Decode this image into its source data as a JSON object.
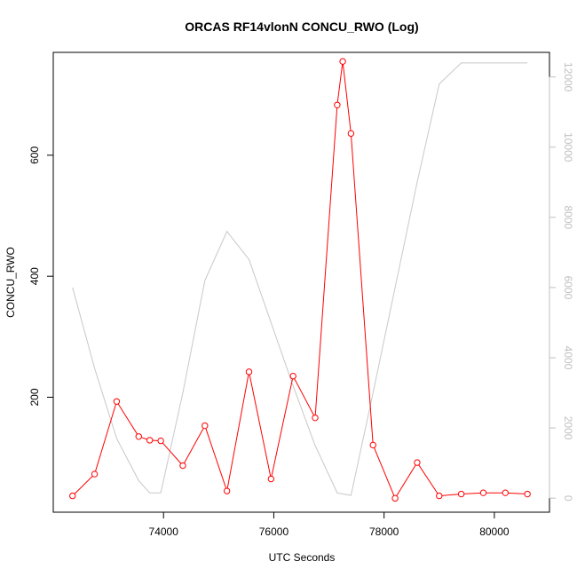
{
  "chart_data": {
    "type": "line",
    "title": "ORCAS RF14vlonN CONCU_RWO (Log)",
    "xlabel": "UTC Seconds",
    "ylabel": "CONCU_RWO",
    "y2label": "",
    "xlim": [
      72000,
      81000
    ],
    "ylim": [
      10,
      770
    ],
    "y2lim": [
      -400,
      12700
    ],
    "x_ticks": [
      74000,
      76000,
      78000,
      80000
    ],
    "y_ticks": [
      200,
      400,
      600
    ],
    "y2_ticks": [
      0,
      2000,
      4000,
      6000,
      8000,
      10000,
      12000
    ],
    "grid": false,
    "series": [
      {
        "axis": "left",
        "color": "#ff0000",
        "marker": "circle",
        "points": [
          [
            72350,
            37
          ],
          [
            72750,
            73
          ],
          [
            73150,
            193
          ],
          [
            73550,
            135
          ],
          [
            73750,
            129
          ],
          [
            73950,
            128
          ],
          [
            74350,
            87
          ],
          [
            74750,
            153
          ],
          [
            75150,
            45
          ],
          [
            75550,
            242
          ],
          [
            75950,
            65
          ],
          [
            76350,
            235
          ],
          [
            76750,
            166
          ],
          [
            77150,
            683
          ],
          [
            77250,
            755
          ],
          [
            77400,
            636
          ],
          [
            77800,
            121
          ],
          [
            78200,
            33
          ],
          [
            78600,
            92
          ],
          [
            79000,
            37
          ],
          [
            79400,
            40
          ],
          [
            79800,
            42
          ],
          [
            80200,
            42
          ],
          [
            80600,
            40
          ]
        ]
      },
      {
        "axis": "right",
        "color": "#c8c8c8",
        "marker": "none",
        "points": [
          [
            72350,
            6000
          ],
          [
            72750,
            3700
          ],
          [
            73150,
            1700
          ],
          [
            73550,
            500
          ],
          [
            73750,
            150
          ],
          [
            73950,
            150
          ],
          [
            74350,
            3000
          ],
          [
            74750,
            6200
          ],
          [
            75150,
            7600
          ],
          [
            75550,
            6800
          ],
          [
            75950,
            5000
          ],
          [
            76350,
            3200
          ],
          [
            76750,
            1500
          ],
          [
            77150,
            150
          ],
          [
            77400,
            80
          ],
          [
            77800,
            3000
          ],
          [
            78200,
            6000
          ],
          [
            78600,
            9000
          ],
          [
            79000,
            11800
          ],
          [
            79400,
            12400
          ],
          [
            79800,
            12400
          ],
          [
            80200,
            12400
          ],
          [
            80600,
            12400
          ]
        ]
      }
    ]
  }
}
